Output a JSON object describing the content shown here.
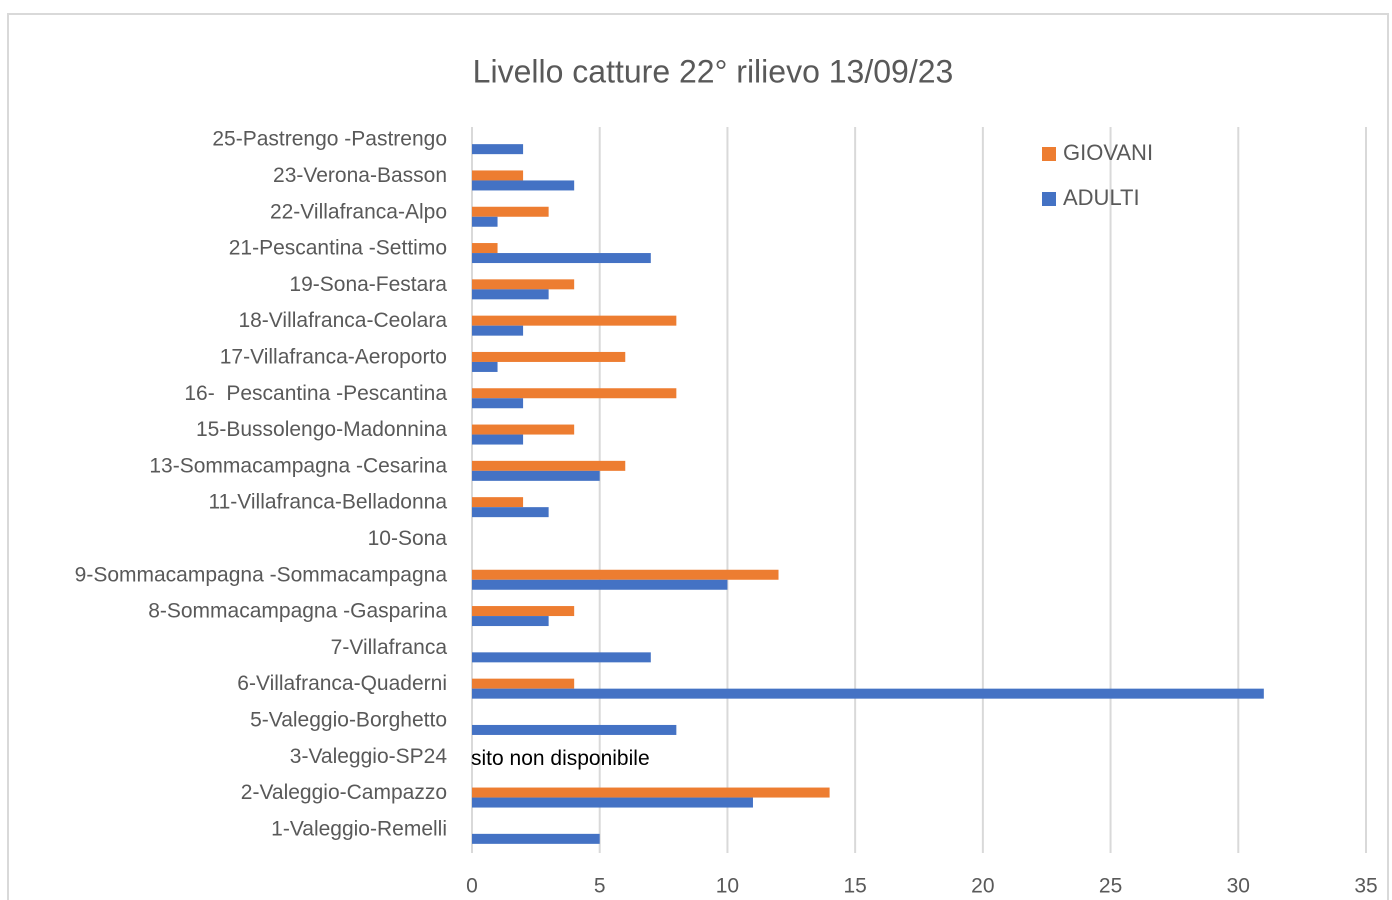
{
  "chart_data": {
    "type": "bar",
    "orientation": "horizontal",
    "title": "Livello catture 22° rilievo 13/09/23",
    "categories": [
      "25-Pastrengo -Pastrengo",
      "23-Verona-Basson",
      "22-Villafranca-Alpo",
      "21-Pescantina -Settimo",
      "19-Sona-Festara",
      "18-Villafranca-Ceolara",
      "17-Villafranca-Aeroporto",
      "16-  Pescantina -Pescantina",
      "15-Bussolengo-Madonnina",
      "13-Sommacampagna -Cesarina",
      "11-Villafranca-Belladonna",
      "10-Sona",
      "9-Sommacampagna -Sommacampagna",
      "8-Sommacampagna -Gasparina",
      "7-Villafranca",
      "6-Villafranca-Quaderni",
      "5-Valeggio-Borghetto",
      "3-Valeggio-SP24",
      "2-Valeggio-Campazzo",
      "1-Valeggio-Remelli"
    ],
    "series": [
      {
        "name": "GIOVANI",
        "color": "#ed7d31",
        "values": [
          null,
          2,
          3,
          1,
          4,
          8,
          6,
          8,
          4,
          6,
          2,
          null,
          12,
          4,
          null,
          4,
          null,
          null,
          14,
          null
        ]
      },
      {
        "name": "ADULTI",
        "color": "#4472c4",
        "values": [
          2,
          4,
          1,
          7,
          3,
          2,
          1,
          2,
          2,
          5,
          3,
          null,
          10,
          3,
          7,
          31,
          8,
          null,
          11,
          5
        ]
      }
    ],
    "annotations": [
      {
        "text": "sito non disponibile",
        "category": "3-Valeggio-SP24"
      }
    ],
    "xlim": [
      0,
      35
    ],
    "xticks": [
      0,
      5,
      10,
      15,
      20,
      25,
      30,
      35
    ],
    "grid": true,
    "legend": "upper right"
  }
}
